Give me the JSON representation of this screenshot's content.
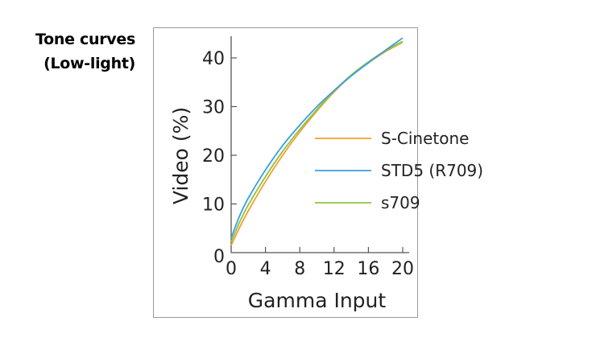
{
  "chart_data": {
    "type": "line",
    "title": [
      "Tone curves",
      "(Low-light)"
    ],
    "xlabel": "Gamma Input",
    "ylabel": "Video (%)",
    "xlim": [
      0,
      20
    ],
    "ylim": [
      0,
      45
    ],
    "xticks": [
      0,
      4,
      8,
      12,
      16,
      20
    ],
    "yticks": [
      0,
      10,
      20,
      30,
      40
    ],
    "grid": false,
    "legend_position": "center-right",
    "x": [
      0,
      1,
      2,
      4,
      6,
      8,
      10,
      12,
      14,
      16,
      18,
      20
    ],
    "series": [
      {
        "name": "S-Cinetone",
        "color": "#f0a030",
        "values": [
          1.5,
          5.2,
          8.6,
          14.6,
          20.0,
          24.8,
          29.1,
          33.0,
          36.4,
          39.0,
          41.3,
          43.2
        ]
      },
      {
        "name": "STD5 (R709)",
        "color": "#3d9ee0",
        "values": [
          3.0,
          7.6,
          11.2,
          17.0,
          22.0,
          26.2,
          30.0,
          33.3,
          36.3,
          39.0,
          41.6,
          44.1
        ]
      },
      {
        "name": "s709",
        "color": "#8cc63e",
        "values": [
          2.2,
          6.3,
          9.8,
          15.6,
          20.8,
          25.3,
          29.4,
          33.2,
          36.5,
          39.2,
          41.5,
          43.4
        ]
      }
    ]
  }
}
